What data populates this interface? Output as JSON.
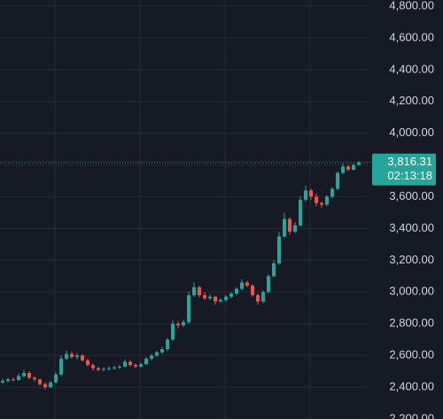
{
  "chart_data": {
    "type": "candlestick",
    "up_color": "#26a69a",
    "down_color": "#ef5350",
    "grid": true,
    "ylim": [
      2200,
      4839
    ],
    "yticks": [
      {
        "value": 2200,
        "label": "2,200.00"
      },
      {
        "value": 2400,
        "label": "2,400.00"
      },
      {
        "value": 2600,
        "label": "2,600.00"
      },
      {
        "value": 2800,
        "label": "2,800.00"
      },
      {
        "value": 3000,
        "label": "3,000.00"
      },
      {
        "value": 3200,
        "label": "3,200.00"
      },
      {
        "value": 3400,
        "label": "3,400.00"
      },
      {
        "value": 3600,
        "label": "3,600.00"
      },
      {
        "value": 3800,
        "label": "3,800.00"
      },
      {
        "value": 4000,
        "label": "4,000.00"
      },
      {
        "value": 4200,
        "label": "4,200.00"
      },
      {
        "value": 4400,
        "label": "4,400.00"
      },
      {
        "value": 4600,
        "label": "4,600.00"
      },
      {
        "value": 4800,
        "label": "4,800.00"
      }
    ],
    "last_price": {
      "value": 3816.31,
      "label": "3,816.31"
    },
    "countdown": "02:13:18",
    "ohlc": [
      [
        2430,
        2455,
        2420,
        2440
      ],
      [
        2440,
        2460,
        2430,
        2450
      ],
      [
        2450,
        2462,
        2435,
        2445
      ],
      [
        2445,
        2485,
        2440,
        2470
      ],
      [
        2470,
        2510,
        2460,
        2490
      ],
      [
        2490,
        2500,
        2450,
        2460
      ],
      [
        2460,
        2470,
        2435,
        2450
      ],
      [
        2450,
        2455,
        2410,
        2420
      ],
      [
        2420,
        2430,
        2385,
        2400
      ],
      [
        2400,
        2440,
        2395,
        2430
      ],
      [
        2430,
        2495,
        2425,
        2480
      ],
      [
        2480,
        2600,
        2470,
        2580
      ],
      [
        2580,
        2630,
        2570,
        2610
      ],
      [
        2610,
        2625,
        2580,
        2590
      ],
      [
        2590,
        2615,
        2575,
        2600
      ],
      [
        2600,
        2610,
        2560,
        2570
      ],
      [
        2570,
        2580,
        2530,
        2540
      ],
      [
        2540,
        2550,
        2505,
        2520
      ],
      [
        2520,
        2530,
        2500,
        2510
      ],
      [
        2510,
        2525,
        2500,
        2515
      ],
      [
        2515,
        2530,
        2505,
        2520
      ],
      [
        2520,
        2535,
        2510,
        2525
      ],
      [
        2525,
        2540,
        2515,
        2530
      ],
      [
        2530,
        2575,
        2525,
        2560
      ],
      [
        2560,
        2570,
        2530,
        2540
      ],
      [
        2540,
        2550,
        2520,
        2530
      ],
      [
        2530,
        2555,
        2525,
        2545
      ],
      [
        2545,
        2590,
        2540,
        2580
      ],
      [
        2580,
        2610,
        2570,
        2600
      ],
      [
        2600,
        2630,
        2590,
        2620
      ],
      [
        2620,
        2655,
        2610,
        2640
      ],
      [
        2640,
        2710,
        2630,
        2700
      ],
      [
        2700,
        2820,
        2690,
        2800
      ],
      [
        2800,
        2815,
        2770,
        2790
      ],
      [
        2790,
        2825,
        2780,
        2810
      ],
      [
        2810,
        3000,
        2800,
        2980
      ],
      [
        2980,
        3060,
        2970,
        3030
      ],
      [
        3030,
        3040,
        2965,
        2980
      ],
      [
        2980,
        3000,
        2950,
        2960
      ],
      [
        2960,
        2985,
        2950,
        2970
      ],
      [
        2970,
        2975,
        2920,
        2940
      ],
      [
        2940,
        2960,
        2930,
        2950
      ],
      [
        2950,
        2980,
        2940,
        2970
      ],
      [
        2970,
        3000,
        2960,
        2990
      ],
      [
        2990,
        3030,
        2980,
        3020
      ],
      [
        3020,
        3080,
        3010,
        3060
      ],
      [
        3060,
        3070,
        3030,
        3040
      ],
      [
        3040,
        3050,
        2970,
        2980
      ],
      [
        2980,
        2990,
        2920,
        2940
      ],
      [
        2940,
        3010,
        2930,
        3000
      ],
      [
        3000,
        3110,
        2990,
        3100
      ],
      [
        3100,
        3200,
        3090,
        3180
      ],
      [
        3180,
        3380,
        3170,
        3350
      ],
      [
        3350,
        3500,
        3340,
        3460
      ],
      [
        3460,
        3470,
        3360,
        3380
      ],
      [
        3380,
        3440,
        3370,
        3420
      ],
      [
        3420,
        3600,
        3410,
        3580
      ],
      [
        3580,
        3670,
        3570,
        3640
      ],
      [
        3640,
        3650,
        3580,
        3600
      ],
      [
        3600,
        3620,
        3540,
        3560
      ],
      [
        3560,
        3570,
        3530,
        3550
      ],
      [
        3550,
        3610,
        3540,
        3600
      ],
      [
        3600,
        3660,
        3590,
        3650
      ],
      [
        3650,
        3760,
        3640,
        3750
      ],
      [
        3750,
        3810,
        3740,
        3790
      ],
      [
        3790,
        3800,
        3760,
        3770
      ],
      [
        3770,
        3810,
        3765,
        3800
      ],
      [
        3800,
        3825,
        3795,
        3816.31
      ]
    ]
  }
}
